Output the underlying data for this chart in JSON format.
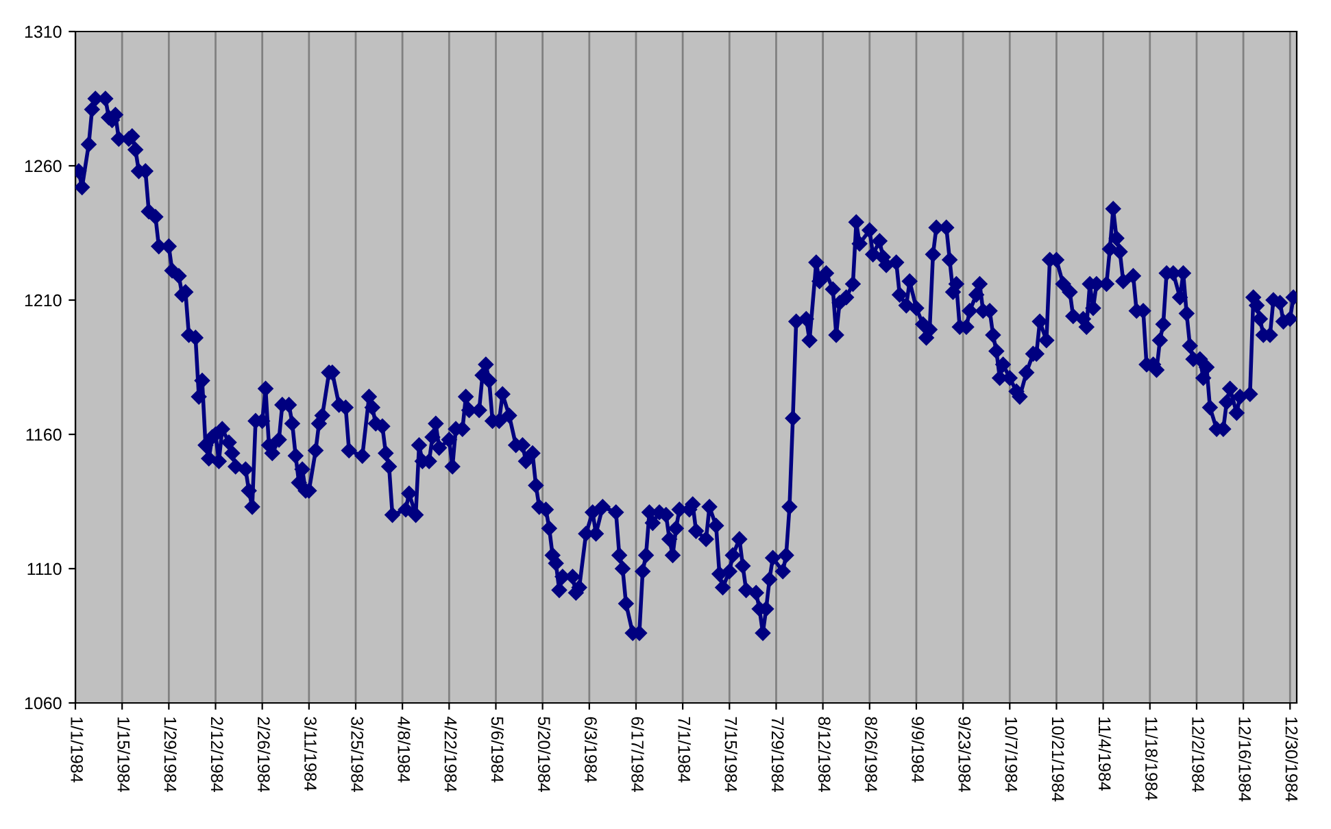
{
  "chart_data": {
    "type": "line",
    "marker": "diamond",
    "line_style": "solid",
    "grid": "x",
    "legend": false,
    "xlim": [
      "1984-01-01",
      "1985-01-01"
    ],
    "xticks": [
      {
        "value": "1984-01-01",
        "label": "1/1/1984"
      },
      {
        "value": "1984-01-15",
        "label": "1/15/1984"
      },
      {
        "value": "1984-01-29",
        "label": "1/29/1984"
      },
      {
        "value": "1984-02-12",
        "label": "2/12/1984"
      },
      {
        "value": "1984-02-26",
        "label": "2/26/1984"
      },
      {
        "value": "1984-03-11",
        "label": "3/11/1984"
      },
      {
        "value": "1984-03-25",
        "label": "3/25/1984"
      },
      {
        "value": "1984-04-08",
        "label": "4/8/1984"
      },
      {
        "value": "1984-04-22",
        "label": "4/22/1984"
      },
      {
        "value": "1984-05-06",
        "label": "5/6/1984"
      },
      {
        "value": "1984-05-20",
        "label": "5/20/1984"
      },
      {
        "value": "1984-06-03",
        "label": "6/3/1984"
      },
      {
        "value": "1984-06-17",
        "label": "6/17/1984"
      },
      {
        "value": "1984-07-01",
        "label": "7/1/1984"
      },
      {
        "value": "1984-07-15",
        "label": "7/15/1984"
      },
      {
        "value": "1984-07-29",
        "label": "7/29/1984"
      },
      {
        "value": "1984-08-12",
        "label": "8/12/1984"
      },
      {
        "value": "1984-08-26",
        "label": "8/26/1984"
      },
      {
        "value": "1984-09-09",
        "label": "9/9/1984"
      },
      {
        "value": "1984-09-23",
        "label": "9/23/1984"
      },
      {
        "value": "1984-10-07",
        "label": "10/7/1984"
      },
      {
        "value": "1984-10-21",
        "label": "10/21/1984"
      },
      {
        "value": "1984-11-04",
        "label": "11/4/1984"
      },
      {
        "value": "1984-11-18",
        "label": "11/18/1984"
      },
      {
        "value": "1984-12-02",
        "label": "12/2/1984"
      },
      {
        "value": "1984-12-16",
        "label": "12/16/1984"
      },
      {
        "value": "1984-12-30",
        "label": "12/30/1984"
      }
    ],
    "ylim": [
      1060,
      1310
    ],
    "yticks": [
      1060,
      1110,
      1160,
      1210,
      1260,
      1310
    ],
    "series": [
      {
        "color": "#000080",
        "x": [
          "1984-01-02",
          "1984-01-03",
          "1984-01-05",
          "1984-01-06",
          "1984-01-07",
          "1984-01-10",
          "1984-01-11",
          "1984-01-12",
          "1984-01-13",
          "1984-01-14",
          "1984-01-17",
          "1984-01-18",
          "1984-01-19",
          "1984-01-20",
          "1984-01-22",
          "1984-01-23",
          "1984-01-25",
          "1984-01-26",
          "1984-01-29",
          "1984-01-30",
          "1984-02-01",
          "1984-02-02",
          "1984-02-03",
          "1984-02-04",
          "1984-02-06",
          "1984-02-07",
          "1984-02-08",
          "1984-02-09",
          "1984-02-10",
          "1984-02-11",
          "1984-02-12",
          "1984-02-13",
          "1984-02-14",
          "1984-02-16",
          "1984-02-17",
          "1984-02-18",
          "1984-02-21",
          "1984-02-22",
          "1984-02-23",
          "1984-02-24",
          "1984-02-26",
          "1984-02-27",
          "1984-02-28",
          "1984-02-29",
          "1984-03-02",
          "1984-03-03",
          "1984-03-05",
          "1984-03-06",
          "1984-03-07",
          "1984-03-08",
          "1984-03-09",
          "1984-03-10",
          "1984-03-11",
          "1984-03-13",
          "1984-03-14",
          "1984-03-15",
          "1984-03-17",
          "1984-03-18",
          "1984-03-20",
          "1984-03-22",
          "1984-03-23",
          "1984-03-27",
          "1984-03-29",
          "1984-03-30",
          "1984-03-31",
          "1984-04-02",
          "1984-04-03",
          "1984-04-04",
          "1984-04-05",
          "1984-04-09",
          "1984-04-10",
          "1984-04-12",
          "1984-04-13",
          "1984-04-14",
          "1984-04-16",
          "1984-04-17",
          "1984-04-18",
          "1984-04-19",
          "1984-04-22",
          "1984-04-23",
          "1984-04-24",
          "1984-04-26",
          "1984-04-27",
          "1984-04-28",
          "1984-05-01",
          "1984-05-02",
          "1984-05-03",
          "1984-05-04",
          "1984-05-05",
          "1984-05-07",
          "1984-05-08",
          "1984-05-10",
          "1984-05-12",
          "1984-05-14",
          "1984-05-15",
          "1984-05-17",
          "1984-05-18",
          "1984-05-19",
          "1984-05-21",
          "1984-05-22",
          "1984-05-23",
          "1984-05-24",
          "1984-05-25",
          "1984-05-26",
          "1984-05-29",
          "1984-05-30",
          "1984-05-31",
          "1984-06-02",
          "1984-06-04",
          "1984-06-05",
          "1984-06-07",
          "1984-06-11",
          "1984-06-12",
          "1984-06-13",
          "1984-06-14",
          "1984-06-16",
          "1984-06-18",
          "1984-06-19",
          "1984-06-20",
          "1984-06-21",
          "1984-06-22",
          "1984-06-24",
          "1984-06-26",
          "1984-06-27",
          "1984-06-28",
          "1984-06-29",
          "1984-06-30",
          "1984-07-03",
          "1984-07-04",
          "1984-07-05",
          "1984-07-08",
          "1984-07-09",
          "1984-07-11",
          "1984-07-12",
          "1984-07-13",
          "1984-07-15",
          "1984-07-16",
          "1984-07-18",
          "1984-07-19",
          "1984-07-20",
          "1984-07-23",
          "1984-07-24",
          "1984-07-25",
          "1984-07-26",
          "1984-07-27",
          "1984-07-28",
          "1984-07-31",
          "1984-08-01",
          "1984-08-02",
          "1984-08-03",
          "1984-08-04",
          "1984-08-07",
          "1984-08-08",
          "1984-08-10",
          "1984-08-11",
          "1984-08-13",
          "1984-08-15",
          "1984-08-16",
          "1984-08-17",
          "1984-08-19",
          "1984-08-21",
          "1984-08-22",
          "1984-08-23",
          "1984-08-26",
          "1984-08-27",
          "1984-08-29",
          "1984-08-30",
          "1984-08-31",
          "1984-09-03",
          "1984-09-04",
          "1984-09-06",
          "1984-09-07",
          "1984-09-09",
          "1984-09-11",
          "1984-09-12",
          "1984-09-13",
          "1984-09-14",
          "1984-09-15",
          "1984-09-18",
          "1984-09-19",
          "1984-09-20",
          "1984-09-21",
          "1984-09-22",
          "1984-09-24",
          "1984-09-25",
          "1984-09-27",
          "1984-09-28",
          "1984-09-29",
          "1984-10-01",
          "1984-10-02",
          "1984-10-03",
          "1984-10-04",
          "1984-10-05",
          "1984-10-07",
          "1984-10-09",
          "1984-10-10",
          "1984-10-12",
          "1984-10-14",
          "1984-10-15",
          "1984-10-16",
          "1984-10-18",
          "1984-10-19",
          "1984-10-21",
          "1984-10-23",
          "1984-10-25",
          "1984-10-26",
          "1984-10-29",
          "1984-10-30",
          "1984-10-31",
          "1984-11-01",
          "1984-11-02",
          "1984-11-05",
          "1984-11-06",
          "1984-11-07",
          "1984-11-08",
          "1984-11-09",
          "1984-11-10",
          "1984-11-13",
          "1984-11-14",
          "1984-11-16",
          "1984-11-17",
          "1984-11-19",
          "1984-11-20",
          "1984-11-21",
          "1984-11-22",
          "1984-11-23",
          "1984-11-25",
          "1984-11-27",
          "1984-11-28",
          "1984-11-29",
          "1984-11-30",
          "1984-12-01",
          "1984-12-03",
          "1984-12-04",
          "1984-12-05",
          "1984-12-06",
          "1984-12-08",
          "1984-12-10",
          "1984-12-11",
          "1984-12-12",
          "1984-12-14",
          "1984-12-15",
          "1984-12-18",
          "1984-12-19",
          "1984-12-20",
          "1984-12-21",
          "1984-12-22",
          "1984-12-24",
          "1984-12-25",
          "1984-12-27",
          "1984-12-28",
          "1984-12-30",
          "1984-12-31"
        ],
        "values": [
          1258,
          1252,
          1268,
          1281,
          1285,
          1285,
          1278,
          1277,
          1279,
          1270,
          1270,
          1271,
          1266,
          1258,
          1258,
          1243,
          1241,
          1230,
          1230,
          1221,
          1219,
          1212,
          1213,
          1197,
          1196,
          1174,
          1180,
          1156,
          1151,
          1159,
          1160,
          1150,
          1162,
          1157,
          1153,
          1148,
          1147,
          1139,
          1133,
          1165,
          1165,
          1177,
          1156,
          1153,
          1158,
          1171,
          1171,
          1164,
          1152,
          1142,
          1147,
          1139,
          1139,
          1154,
          1164,
          1167,
          1183,
          1183,
          1171,
          1170,
          1154,
          1152,
          1174,
          1170,
          1164,
          1163,
          1153,
          1148,
          1130,
          1132,
          1138,
          1130,
          1156,
          1150,
          1150,
          1159,
          1164,
          1155,
          1158,
          1148,
          1162,
          1162,
          1174,
          1169,
          1169,
          1182,
          1186,
          1180,
          1165,
          1165,
          1175,
          1167,
          1156,
          1156,
          1150,
          1153,
          1141,
          1133,
          1132,
          1125,
          1115,
          1112,
          1102,
          1107,
          1107,
          1101,
          1103,
          1123,
          1131,
          1123,
          1133,
          1131,
          1115,
          1110,
          1097,
          1086,
          1086,
          1109,
          1115,
          1131,
          1127,
          1131,
          1130,
          1121,
          1115,
          1125,
          1132,
          1132,
          1134,
          1124,
          1121,
          1133,
          1126,
          1108,
          1103,
          1109,
          1115,
          1121,
          1111,
          1102,
          1101,
          1095,
          1086,
          1095,
          1106,
          1114,
          1109,
          1115,
          1133,
          1166,
          1202,
          1203,
          1195,
          1224,
          1217,
          1220,
          1214,
          1197,
          1209,
          1211,
          1216,
          1239,
          1231,
          1236,
          1227,
          1232,
          1226,
          1223,
          1224,
          1212,
          1208,
          1217,
          1207,
          1201,
          1196,
          1199,
          1227,
          1237,
          1237,
          1225,
          1213,
          1216,
          1200,
          1200,
          1206,
          1212,
          1216,
          1206,
          1206,
          1197,
          1191,
          1181,
          1186,
          1181,
          1176,
          1174,
          1183,
          1190,
          1190,
          1202,
          1195,
          1225,
          1225,
          1216,
          1213,
          1204,
          1203,
          1200,
          1216,
          1207,
          1216,
          1216,
          1229,
          1244,
          1233,
          1228,
          1217,
          1219,
          1206,
          1206,
          1186,
          1186,
          1184,
          1195,
          1201,
          1220,
          1220,
          1211,
          1220,
          1205,
          1193,
          1188,
          1188,
          1181,
          1185,
          1170,
          1162,
          1162,
          1172,
          1177,
          1168,
          1174,
          1175,
          1211,
          1208,
          1203,
          1197,
          1197,
          1210,
          1209,
          1202,
          1203,
          1211
        ]
      }
    ]
  }
}
